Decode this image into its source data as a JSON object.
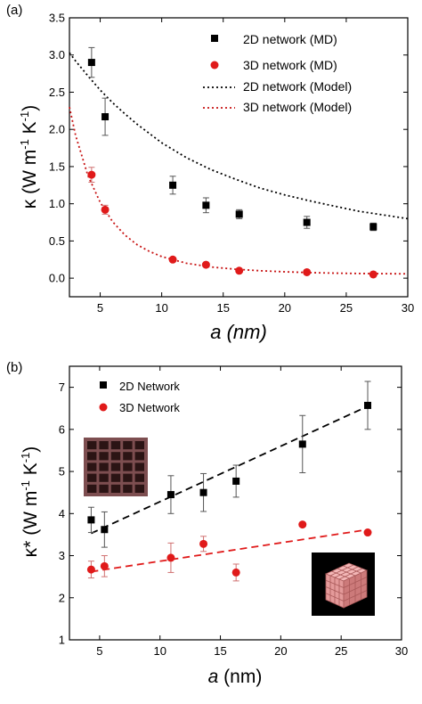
{
  "panels": [
    {
      "label": "(a)",
      "xlabel": "a (nm)"
    },
    {
      "label": "(b)",
      "xlabel": "a (nm)"
    }
  ],
  "colors": {
    "series_2d": "#000000",
    "series_3d": "#e01a1a",
    "model_3d": "#c81414"
  },
  "insets": [
    {
      "name": "2d-network-structure-image",
      "description_icon": "grid-lattice"
    },
    {
      "name": "3d-network-structure-image",
      "description_icon": "cube-lattice"
    }
  ],
  "chart_data": [
    {
      "type": "scatter",
      "panel": "(a)",
      "xlabel": "a (nm)",
      "ylabel": "κ (W m⁻¹ K⁻¹)",
      "xlim": [
        2.5,
        30
      ],
      "ylim": [
        -0.25,
        3.5
      ],
      "xticks": [
        5,
        10,
        15,
        20,
        25,
        30
      ],
      "yticks": [
        0.0,
        0.5,
        1.0,
        1.5,
        2.0,
        2.5,
        3.0,
        3.5
      ],
      "ytick_labels": [
        "0.0",
        "0.5",
        "1.0",
        "1.5",
        "2.0",
        "2.5",
        "3.0",
        "3.5"
      ],
      "legend_position": "top-right",
      "series": [
        {
          "name": "2D network (MD)",
          "kind": "markers",
          "marker": "square",
          "color": "#000000",
          "x": [
            4.3,
            5.4,
            10.9,
            13.6,
            16.3,
            21.8,
            27.2
          ],
          "y": [
            2.9,
            2.17,
            1.25,
            0.98,
            0.86,
            0.75,
            0.69
          ],
          "err": [
            0.2,
            0.25,
            0.12,
            0.1,
            0.06,
            0.08,
            0.05
          ]
        },
        {
          "name": "3D network (MD)",
          "kind": "markers",
          "marker": "circle",
          "color": "#e01a1a",
          "x": [
            4.3,
            5.4,
            10.9,
            13.6,
            16.3,
            21.8,
            27.2
          ],
          "y": [
            1.39,
            0.92,
            0.25,
            0.18,
            0.1,
            0.08,
            0.05
          ],
          "err": [
            0.1,
            0.06,
            0.0,
            0.0,
            0.0,
            0.0,
            0.0
          ]
        },
        {
          "name": "2D network (Model)",
          "kind": "dotted-line",
          "color": "#000000",
          "x": [
            2.5,
            3,
            4,
            5,
            6,
            7,
            8,
            10,
            12,
            14,
            16,
            18,
            20,
            22,
            24,
            26,
            28,
            30
          ],
          "y": [
            3.03,
            2.92,
            2.72,
            2.53,
            2.36,
            2.21,
            2.07,
            1.82,
            1.62,
            1.46,
            1.33,
            1.21,
            1.12,
            1.04,
            0.97,
            0.9,
            0.85,
            0.8
          ]
        },
        {
          "name": "3D network (Model)",
          "kind": "dotted-line",
          "color": "#c81414",
          "x": [
            2.5,
            3,
            4,
            5,
            6,
            7,
            8,
            9,
            10,
            12,
            14,
            16,
            18,
            20,
            22,
            24,
            26,
            28,
            30
          ],
          "y": [
            2.3,
            1.92,
            1.38,
            1.02,
            0.76,
            0.58,
            0.45,
            0.36,
            0.29,
            0.2,
            0.15,
            0.12,
            0.1,
            0.085,
            0.075,
            0.068,
            0.063,
            0.06,
            0.058
          ]
        }
      ]
    },
    {
      "type": "scatter",
      "panel": "(b)",
      "xlabel": "a (nm)",
      "ylabel": "κ* (W m⁻¹ K⁻¹)",
      "xlim": [
        2.5,
        30
      ],
      "ylim": [
        1,
        7.5
      ],
      "xticks": [
        5,
        10,
        15,
        20,
        25,
        30
      ],
      "yticks": [
        1,
        2,
        3,
        4,
        5,
        6,
        7
      ],
      "ytick_labels": [
        "1",
        "2",
        "3",
        "4",
        "5",
        "6",
        "7"
      ],
      "legend_position": "top-left",
      "series": [
        {
          "name": "2D Network",
          "kind": "markers",
          "marker": "square",
          "color": "#000000",
          "x": [
            4.3,
            5.4,
            10.9,
            13.6,
            16.3,
            21.8,
            27.2
          ],
          "y": [
            3.85,
            3.62,
            4.45,
            4.5,
            4.77,
            5.65,
            6.57
          ],
          "err": [
            0.3,
            0.42,
            0.45,
            0.45,
            0.38,
            0.68,
            0.57
          ]
        },
        {
          "name": "3D Network",
          "kind": "markers",
          "marker": "circle",
          "color": "#e01a1a",
          "x": [
            4.3,
            5.4,
            10.9,
            13.6,
            16.3,
            21.8,
            27.2
          ],
          "y": [
            2.67,
            2.75,
            2.95,
            3.28,
            2.6,
            3.74,
            3.55
          ],
          "err": [
            0.2,
            0.25,
            0.35,
            0.18,
            0.2,
            0.0,
            0.0
          ]
        },
        {
          "name": "",
          "kind": "dashed-fit",
          "color": "#000000",
          "x": [
            4.3,
            27.2
          ],
          "y": [
            3.53,
            6.55
          ]
        },
        {
          "name": "",
          "kind": "dashed-fit",
          "color": "#e01a1a",
          "x": [
            4.3,
            27.2
          ],
          "y": [
            2.62,
            3.62
          ]
        }
      ]
    }
  ]
}
